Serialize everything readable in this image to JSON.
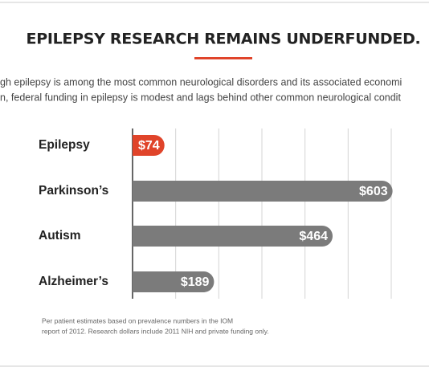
{
  "chart_data": {
    "type": "bar",
    "orientation": "horizontal",
    "title": "EPILEPSY RESEARCH REMAINS UNDERFUNDED.",
    "subtitle": [
      "gh epilepsy is among the most common neurological disorders and its associated economi",
      "n, federal funding in epilepsy is modest and lags behind other common neurological condit"
    ],
    "categories": [
      "Epilepsy",
      "Parkinson’s",
      "Autism",
      "Alzheimer’s"
    ],
    "values": [
      74,
      603,
      464,
      189
    ],
    "value_labels": [
      "$74",
      "$603",
      "$464",
      "$189"
    ],
    "colors": [
      "#e0442a",
      "#7b7b7b",
      "#7b7b7b",
      "#7b7b7b"
    ],
    "xlim": [
      0,
      600
    ],
    "xticks": [
      100,
      200,
      300,
      400,
      500,
      600
    ],
    "grid": true,
    "footnote": [
      "Per patient estimates based on prevalence numbers in the IOM",
      "report of 2012. Research dollars include 2011 NIH and private funding only."
    ]
  }
}
